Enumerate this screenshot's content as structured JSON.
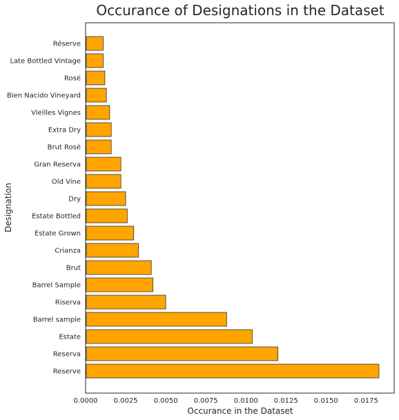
{
  "chart_data": {
    "type": "bar",
    "orientation": "horizontal",
    "title": "Occurance of Designations in the Dataset",
    "xlabel": "Occurance in the Dataset",
    "ylabel": "Designation",
    "xlim": [
      0,
      0.01925
    ],
    "xticks": [
      "0.0000",
      "0.0025",
      "0.0050",
      "0.0075",
      "0.0100",
      "0.0125",
      "0.0150",
      "0.0175"
    ],
    "grid": false,
    "bar_color": "#FFA500",
    "edge_color": "#333333",
    "categories": [
      "Reserve",
      "Reserva",
      "Estate",
      "Barrel sample",
      "Riserva",
      "Barrel Sample",
      "Brut",
      "Crianza",
      "Estate Grown",
      "Estate Bottled",
      "Dry",
      "Old Vine",
      "Gran Reserva",
      "Brut Rosé",
      "Extra Dry",
      "Vieilles Vignes",
      "Bien Nacido Vineyard",
      "Rosé",
      "Late Bottled Vintage",
      "Réserve"
    ],
    "values": [
      0.0183,
      0.012,
      0.0104,
      0.0088,
      0.005,
      0.0042,
      0.0041,
      0.0033,
      0.003,
      0.0026,
      0.0025,
      0.0022,
      0.0022,
      0.0016,
      0.0016,
      0.0015,
      0.0013,
      0.0012,
      0.0011,
      0.0011
    ]
  }
}
